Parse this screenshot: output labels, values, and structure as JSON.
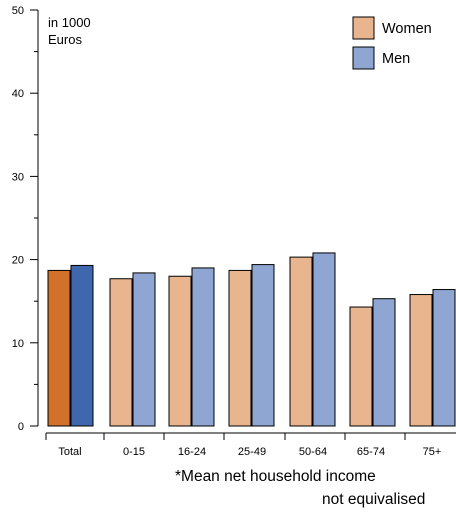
{
  "chart_data": {
    "type": "bar",
    "unit_label_line1": "in 1000",
    "unit_label_line2": "Euros",
    "categories": [
      "Total",
      "0-15",
      "16-24",
      "25-49",
      "50-64",
      "65-74",
      "75+"
    ],
    "series": [
      {
        "name": "Women",
        "values": [
          18.7,
          17.7,
          18.0,
          18.7,
          20.3,
          14.3,
          15.8
        ]
      },
      {
        "name": "Men",
        "values": [
          19.3,
          18.4,
          19.0,
          19.4,
          20.8,
          15.3,
          16.4
        ]
      }
    ],
    "ylim": [
      0,
      50
    ],
    "yticks": [
      0,
      10,
      20,
      30,
      40,
      50
    ],
    "footnote_line1": "*Mean net household income",
    "footnote_line2": "not equivalised",
    "colors": {
      "women": "#e8b58f",
      "men": "#8ea6d1",
      "women_total": "#d2722a",
      "men_total": "#3e67ad"
    },
    "legend_position": "top-right"
  }
}
